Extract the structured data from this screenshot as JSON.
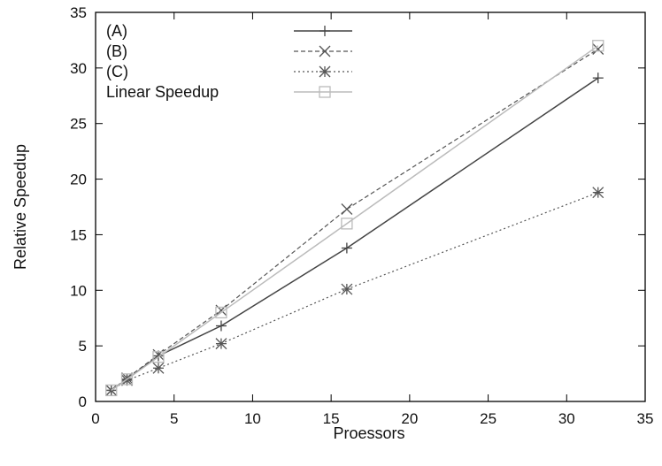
{
  "chart_data": {
    "type": "line",
    "xlabel": "Proessors",
    "ylabel": "Relative Speedup",
    "xlim": [
      0,
      35
    ],
    "ylim": [
      0,
      35
    ],
    "xticks": [
      "0",
      "5",
      "10",
      "15",
      "20",
      "25",
      "30",
      "35"
    ],
    "yticks": [
      "0",
      "5",
      "10",
      "15",
      "20",
      "25",
      "30",
      "35"
    ],
    "grid": false,
    "legend_position": "top-left",
    "series": [
      {
        "name": "(A)",
        "marker": "plus",
        "line": "solid",
        "color": "#444444",
        "x": [
          1,
          2,
          4,
          8,
          16,
          32
        ],
        "y": [
          1,
          2,
          4.1,
          6.8,
          13.8,
          29.1
        ]
      },
      {
        "name": "(B)",
        "marker": "cross",
        "line": "dashed",
        "color": "#555555",
        "x": [
          1,
          2,
          4,
          8,
          16,
          32
        ],
        "y": [
          1,
          2.1,
          4.2,
          8.2,
          17.3,
          31.7
        ]
      },
      {
        "name": "(C)",
        "marker": "asterisk",
        "line": "dotted",
        "color": "#555555",
        "x": [
          1,
          2,
          4,
          8,
          16,
          32
        ],
        "y": [
          1,
          1.9,
          3,
          5.2,
          10.1,
          18.8
        ]
      },
      {
        "name": "Linear Speedup",
        "marker": "square",
        "line": "solid",
        "color": "#bbbbbb",
        "x": [
          1,
          2,
          4,
          8,
          16,
          32
        ],
        "y": [
          1,
          2,
          4,
          8,
          16,
          32
        ]
      }
    ]
  }
}
